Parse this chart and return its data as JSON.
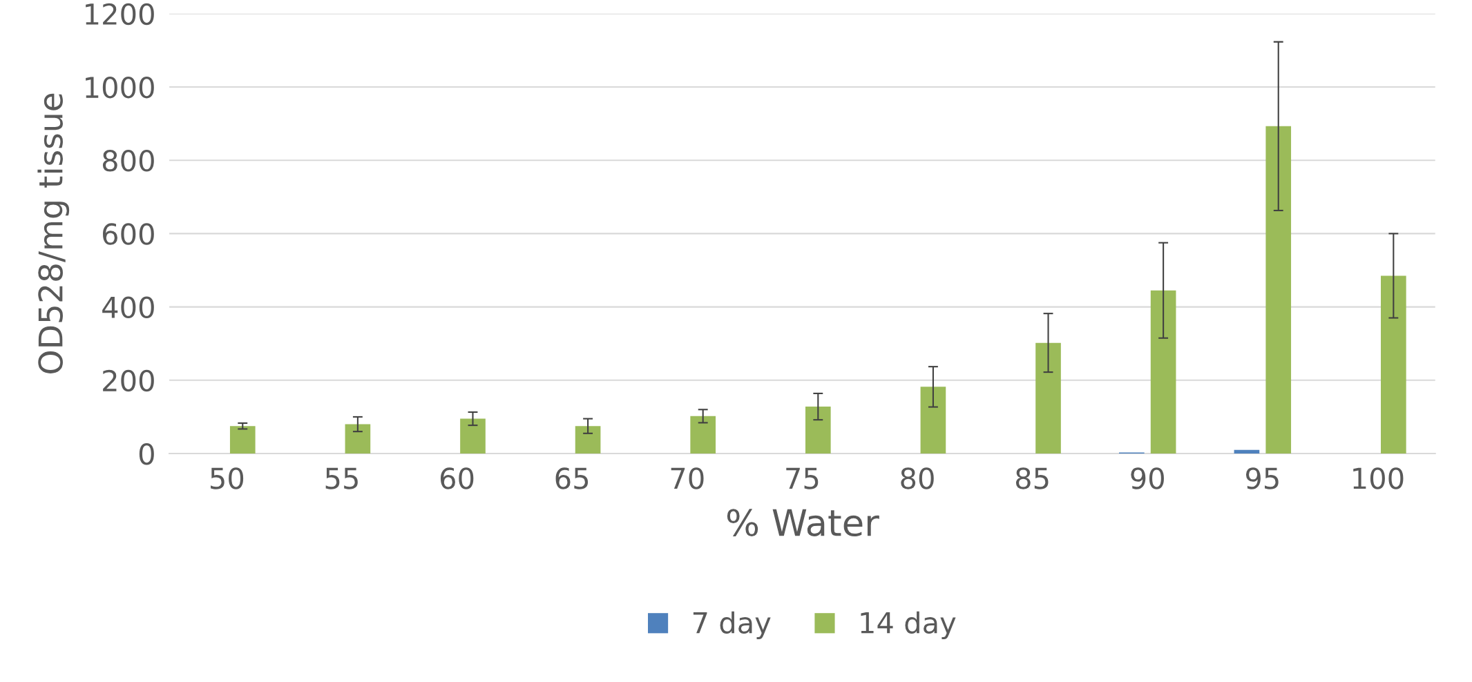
{
  "chart_data": {
    "type": "bar",
    "xlabel": "% Water",
    "ylabel": "OD528/mg tissue",
    "categories": [
      "50",
      "55",
      "60",
      "65",
      "70",
      "75",
      "80",
      "85",
      "90",
      "95",
      "100"
    ],
    "series": [
      {
        "name": "7 day",
        "color": "#4f81bd",
        "values": [
          0,
          0,
          0,
          0,
          0,
          0,
          0,
          0,
          3,
          10,
          0
        ]
      },
      {
        "name": "14 day",
        "color": "#9bbb59",
        "values": [
          75,
          80,
          95,
          75,
          102,
          128,
          182,
          302,
          445,
          893,
          485
        ],
        "errors": [
          8,
          20,
          18,
          20,
          18,
          36,
          55,
          80,
          130,
          230,
          115
        ]
      }
    ],
    "ylim": [
      0,
      1200
    ],
    "yticks": [
      0,
      200,
      400,
      600,
      800,
      1000,
      1200
    ],
    "grid": "y",
    "legend": "bottom"
  }
}
